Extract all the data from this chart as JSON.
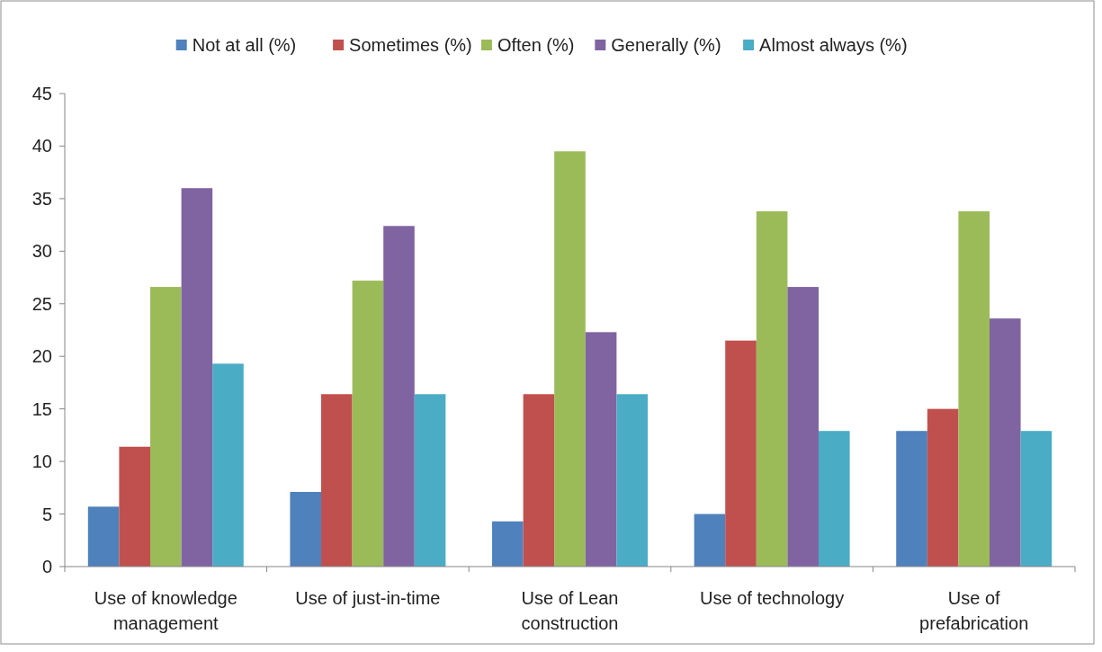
{
  "chart_data": {
    "type": "bar",
    "categories": [
      "Use of knowledge management",
      "Use of just-in-time",
      "Use of Lean construction",
      "Use of technology",
      "Use of prefabrication"
    ],
    "series": [
      {
        "name": "Not at all (%)",
        "color": "#4f81bd",
        "values": [
          5.7,
          7.1,
          4.3,
          5.0,
          12.9
        ]
      },
      {
        "name": "Sometimes (%)",
        "color": "#c0504d",
        "values": [
          11.4,
          16.4,
          16.4,
          21.5,
          15.0
        ]
      },
      {
        "name": "Often (%)",
        "color": "#9bbb59",
        "values": [
          26.6,
          27.2,
          39.5,
          33.8,
          33.8
        ]
      },
      {
        "name": "Generally (%)",
        "color": "#8064a2",
        "values": [
          36.0,
          32.4,
          22.3,
          26.6,
          23.6
        ]
      },
      {
        "name": "Almost always (%)",
        "color": "#4bacc6",
        "values": [
          19.3,
          16.4,
          16.4,
          12.9,
          12.9
        ]
      }
    ],
    "ylim": [
      0,
      45
    ],
    "yticks": [
      0,
      5,
      10,
      15,
      20,
      25,
      30,
      35,
      40,
      45
    ],
    "grid": false,
    "legend": "top"
  }
}
